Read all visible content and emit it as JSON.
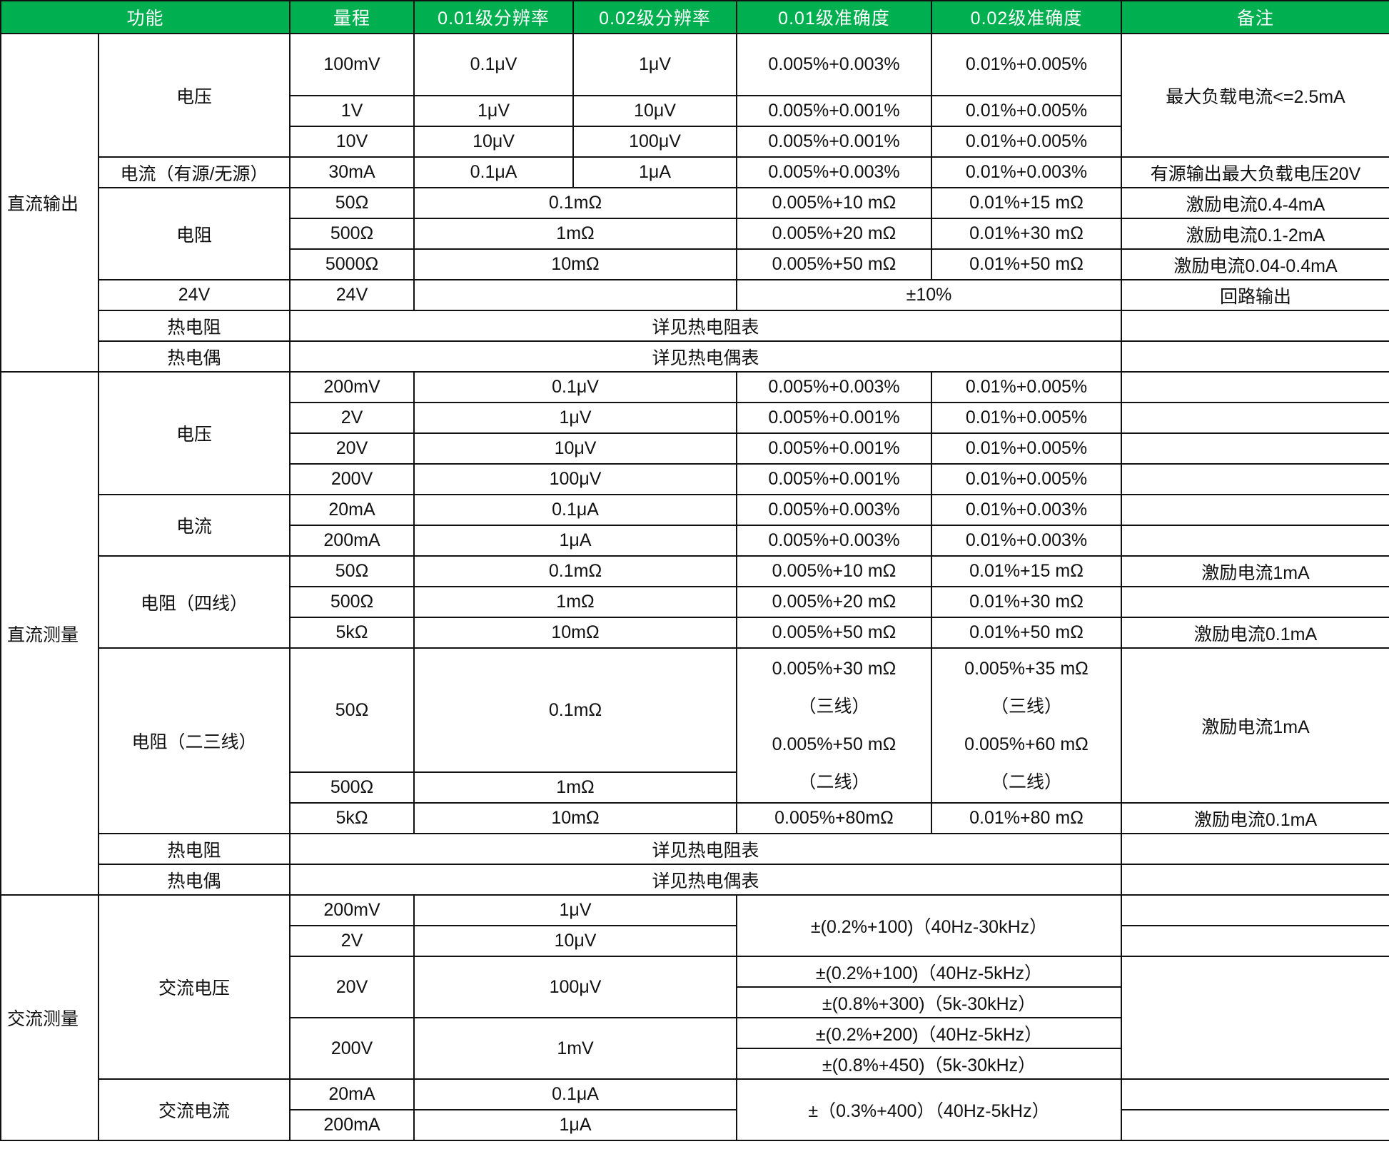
{
  "table": {
    "header": [
      {
        "t": "功能",
        "cs": 2
      },
      {
        "t": "量程"
      },
      {
        "t": "0.01级分辨率"
      },
      {
        "t": "0.02级分辨率"
      },
      {
        "t": "0.01级准确度"
      },
      {
        "t": "0.02级准确度"
      },
      {
        "t": "备注"
      }
    ],
    "header_color": "#00b050",
    "rows": [
      [
        {
          "t": "直流输出",
          "rs": 10,
          "g": 1
        },
        {
          "t": "电压",
          "rs": 3
        },
        {
          "t": "100mV"
        },
        {
          "t": "0.1μV"
        },
        {
          "t": "1μV"
        },
        {
          "t": "0.005%+0.003%"
        },
        {
          "t": "0.01%+0.005%"
        },
        {
          "t": "最大负载电流<=2.5mA",
          "rs": 3
        }
      ],
      [
        {
          "t": "1V"
        },
        {
          "t": "1μV"
        },
        {
          "t": "10μV"
        },
        {
          "t": "0.005%+0.001%"
        },
        {
          "t": "0.01%+0.005%"
        }
      ],
      [
        {
          "t": "10V"
        },
        {
          "t": "10μV"
        },
        {
          "t": "100μV"
        },
        {
          "t": "0.005%+0.001%"
        },
        {
          "t": "0.01%+0.005%"
        }
      ],
      [
        {
          "t": "电流（有源/无源）"
        },
        {
          "t": "30mA"
        },
        {
          "t": "0.1μA"
        },
        {
          "t": "1μA"
        },
        {
          "t": "0.005%+0.003%"
        },
        {
          "t": "0.01%+0.003%"
        },
        {
          "t": "有源输出最大负载电压20V"
        }
      ],
      [
        {
          "t": "电阻",
          "rs": 3
        },
        {
          "t": "50Ω"
        },
        {
          "t": "0.1mΩ",
          "cs": 2
        },
        {
          "t": "0.005%+10 mΩ"
        },
        {
          "t": "0.01%+15 mΩ"
        },
        {
          "t": "激励电流0.4-4mA"
        }
      ],
      [
        {
          "t": "500Ω"
        },
        {
          "t": "1mΩ",
          "cs": 2
        },
        {
          "t": "0.005%+20 mΩ"
        },
        {
          "t": "0.01%+30 mΩ"
        },
        {
          "t": "激励电流0.1-2mA"
        }
      ],
      [
        {
          "t": "5000Ω"
        },
        {
          "t": "10mΩ",
          "cs": 2
        },
        {
          "t": "0.005%+50 mΩ"
        },
        {
          "t": "0.01%+50 mΩ"
        },
        {
          "t": "激励电流0.04-0.4mA"
        }
      ],
      [
        {
          "t": "24V"
        },
        {
          "t": "24V"
        },
        {
          "t": "",
          "cs": 2
        },
        {
          "t": "±10%",
          "cs": 2
        },
        {
          "t": "回路输出"
        }
      ],
      [
        {
          "t": "热电阻"
        },
        {
          "t": "详见热电阻表",
          "cs": 5
        },
        {
          "t": ""
        }
      ],
      [
        {
          "t": "热电偶"
        },
        {
          "t": "详见热电偶表",
          "cs": 5
        },
        {
          "t": ""
        }
      ],
      [
        {
          "t": "直流测量",
          "rs": 14,
          "g": 1
        },
        {
          "t": "电压",
          "rs": 4
        },
        {
          "t": "200mV"
        },
        {
          "t": "0.1μV",
          "cs": 2
        },
        {
          "t": "0.005%+0.003%"
        },
        {
          "t": "0.01%+0.005%"
        },
        {
          "t": ""
        }
      ],
      [
        {
          "t": "2V"
        },
        {
          "t": "1μV",
          "cs": 2
        },
        {
          "t": "0.005%+0.001%"
        },
        {
          "t": "0.01%+0.005%"
        },
        {
          "t": ""
        }
      ],
      [
        {
          "t": "20V"
        },
        {
          "t": "10μV",
          "cs": 2
        },
        {
          "t": "0.005%+0.001%"
        },
        {
          "t": "0.01%+0.005%"
        },
        {
          "t": ""
        }
      ],
      [
        {
          "t": "200V"
        },
        {
          "t": "100μV",
          "cs": 2
        },
        {
          "t": "0.005%+0.001%"
        },
        {
          "t": "0.01%+0.005%"
        },
        {
          "t": ""
        }
      ],
      [
        {
          "t": "电流",
          "rs": 2
        },
        {
          "t": "20mA"
        },
        {
          "t": "0.1μA",
          "cs": 2
        },
        {
          "t": "0.005%+0.003%"
        },
        {
          "t": "0.01%+0.003%"
        },
        {
          "t": ""
        }
      ],
      [
        {
          "t": "200mA"
        },
        {
          "t": "1μA",
          "cs": 2
        },
        {
          "t": "0.005%+0.003%"
        },
        {
          "t": "0.01%+0.003%"
        },
        {
          "t": ""
        }
      ],
      [
        {
          "t": "电阻（四线）",
          "rs": 3
        },
        {
          "t": "50Ω"
        },
        {
          "t": "0.1mΩ",
          "cs": 2
        },
        {
          "t": "0.005%+10 mΩ"
        },
        {
          "t": "0.01%+15 mΩ"
        },
        {
          "t": "激励电流1mA"
        }
      ],
      [
        {
          "t": "500Ω"
        },
        {
          "t": "1mΩ",
          "cs": 2
        },
        {
          "t": "0.005%+20 mΩ"
        },
        {
          "t": "0.01%+30 mΩ"
        },
        {
          "t": ""
        }
      ],
      [
        {
          "t": "5kΩ"
        },
        {
          "t": "10mΩ",
          "cs": 2
        },
        {
          "t": "0.005%+50 mΩ"
        },
        {
          "t": "0.01%+50 mΩ"
        },
        {
          "t": "激励电流0.1mA"
        }
      ],
      [
        {
          "t": "电阻（二三线）",
          "rs": 3
        },
        {
          "t": "50Ω"
        },
        {
          "t": "0.1mΩ",
          "cs": 2
        },
        {
          "lines": [
            "0.005%+30 mΩ",
            "（三线）",
            "0.005%+50 mΩ",
            "（二线）"
          ],
          "rs": 2
        },
        {
          "lines": [
            "0.005%+35 mΩ",
            "（三线）",
            "0.005%+60 mΩ",
            "（二线）"
          ],
          "rs": 2
        },
        {
          "t": "激励电流1mA",
          "rs": 2
        }
      ],
      [
        {
          "t": "500Ω"
        },
        {
          "t": "1mΩ",
          "cs": 2
        }
      ],
      [
        {
          "t": "5kΩ"
        },
        {
          "t": "10mΩ",
          "cs": 2
        },
        {
          "t": "0.005%+80mΩ"
        },
        {
          "t": "0.01%+80 mΩ"
        },
        {
          "t": "激励电流0.1mA"
        }
      ],
      [
        {
          "t": "热电阻"
        },
        {
          "t": "详见热电阻表",
          "cs": 5
        },
        {
          "t": ""
        }
      ],
      [
        {
          "t": "热电偶"
        },
        {
          "t": "详见热电偶表",
          "cs": 5
        },
        {
          "t": ""
        }
      ],
      [
        {
          "t": "交流测量",
          "rs": 8,
          "g": 1
        },
        {
          "t": "交流电压",
          "rs": 6
        },
        {
          "t": "200mV"
        },
        {
          "t": "1μV",
          "cs": 2
        },
        {
          "t": "±(0.2%+100)（40Hz-30kHz）",
          "cs": 2,
          "rs": 2
        },
        {
          "t": ""
        }
      ],
      [
        {
          "t": "2V"
        },
        {
          "t": "10μV",
          "cs": 2
        },
        {
          "t": ""
        }
      ],
      [
        {
          "t": "20V",
          "rs": 2
        },
        {
          "t": "100μV",
          "cs": 2,
          "rs": 2
        },
        {
          "t": "±(0.2%+100)（40Hz-5kHz）",
          "cs": 2
        },
        {
          "t": "",
          "rs": 4
        }
      ],
      [
        {
          "t": "±(0.8%+300)（5k-30kHz）",
          "cs": 2
        }
      ],
      [
        {
          "t": "200V",
          "rs": 2
        },
        {
          "t": "1mV",
          "cs": 2,
          "rs": 2
        },
        {
          "t": "±(0.2%+200)（40Hz-5kHz）",
          "cs": 2
        }
      ],
      [
        {
          "t": "±(0.8%+450)（5k-30kHz）",
          "cs": 2
        }
      ],
      [
        {
          "t": "交流电流",
          "rs": 2
        },
        {
          "t": "20mA"
        },
        {
          "t": "0.1μA",
          "cs": 2
        },
        {
          "t": "±（0.3%+400）（40Hz-5kHz）",
          "cs": 2,
          "rs": 2
        },
        {
          "t": ""
        }
      ],
      [
        {
          "t": "200mA"
        },
        {
          "t": "1μA",
          "cs": 2
        },
        {
          "t": ""
        }
      ]
    ]
  }
}
